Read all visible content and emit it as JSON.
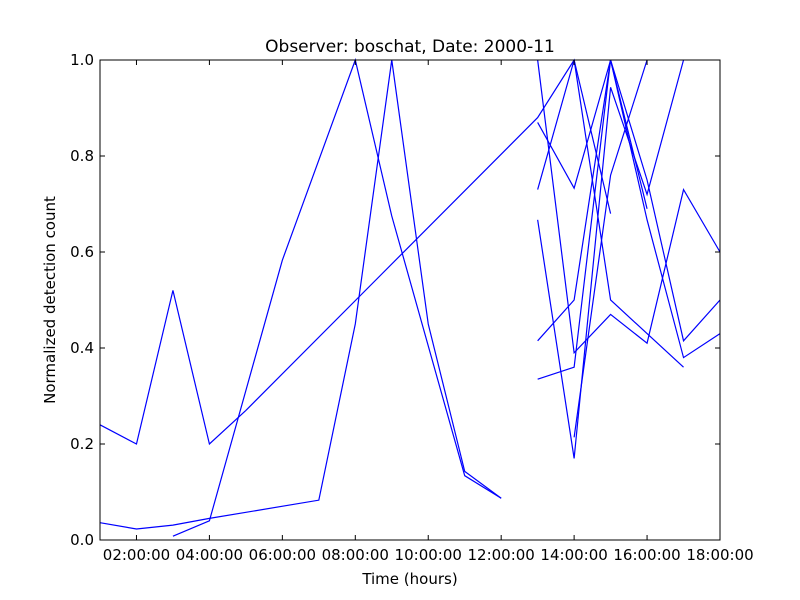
{
  "chart_data": {
    "type": "line",
    "title": "Observer: boschat, Date: 2000-11",
    "xlabel": "Time (hours)",
    "ylabel": "Normalized detection count",
    "xlim": [
      1.0,
      18.0
    ],
    "ylim": [
      0.0,
      1.0
    ],
    "x_ticks": [
      2,
      4,
      6,
      8,
      10,
      12,
      14,
      16,
      18
    ],
    "x_tick_labels": [
      "02:00:00",
      "04:00:00",
      "06:00:00",
      "08:00:00",
      "10:00:00",
      "12:00:00",
      "14:00:00",
      "16:00:00",
      "18:00:00"
    ],
    "y_ticks": [
      0.0,
      0.2,
      0.4,
      0.6,
      0.8,
      1.0
    ],
    "y_tick_labels": [
      "0.0",
      "0.2",
      "0.4",
      "0.6",
      "0.8",
      "1.0"
    ],
    "grid": false,
    "line_color": "#0000ff",
    "series": [
      {
        "x": [
          1,
          2,
          3,
          4,
          5
        ],
        "y": [
          0.24,
          0.2,
          0.52,
          0.2,
          0.27
        ]
      },
      {
        "x": [
          1,
          2,
          3,
          4,
          7,
          8,
          9,
          10,
          11,
          12
        ],
        "y": [
          0.036,
          0.023,
          0.031,
          0.045,
          0.083,
          0.45,
          1.0,
          0.45,
          0.143,
          0.087
        ]
      },
      {
        "x": [
          3,
          4,
          6,
          8,
          9,
          11,
          12
        ],
        "y": [
          0.008,
          0.04,
          0.583,
          1.0,
          0.675,
          0.134,
          0.087
        ]
      },
      {
        "x": [
          5,
          13,
          14,
          15
        ],
        "y": [
          0.27,
          0.88,
          1.0,
          0.68
        ]
      },
      {
        "x": [
          13,
          14,
          15,
          16,
          17,
          18
        ],
        "y": [
          1.0,
          0.39,
          0.47,
          0.41,
          0.73,
          0.6
        ]
      },
      {
        "x": [
          13,
          14,
          15,
          16,
          17
        ],
        "y": [
          0.73,
          1.0,
          0.5,
          0.43,
          0.36
        ]
      },
      {
        "x": [
          13,
          14,
          15,
          16,
          17,
          18
        ],
        "y": [
          0.87,
          0.733,
          1.0,
          0.667,
          0.38,
          0.43
        ]
      },
      {
        "x": [
          13,
          14,
          15,
          16,
          17
        ],
        "y": [
          0.667,
          0.17,
          0.943,
          0.72,
          1.0
        ]
      },
      {
        "x": [
          13,
          14,
          15,
          16,
          17,
          18
        ],
        "y": [
          0.415,
          0.5,
          1.0,
          0.75,
          0.415,
          0.5
        ]
      },
      {
        "x": [
          13,
          14,
          15,
          16
        ],
        "y": [
          0.335,
          0.36,
          1.0,
          0.69
        ]
      },
      {
        "x": [
          14,
          15,
          16
        ],
        "y": [
          0.214,
          0.76,
          1.0
        ]
      }
    ]
  }
}
